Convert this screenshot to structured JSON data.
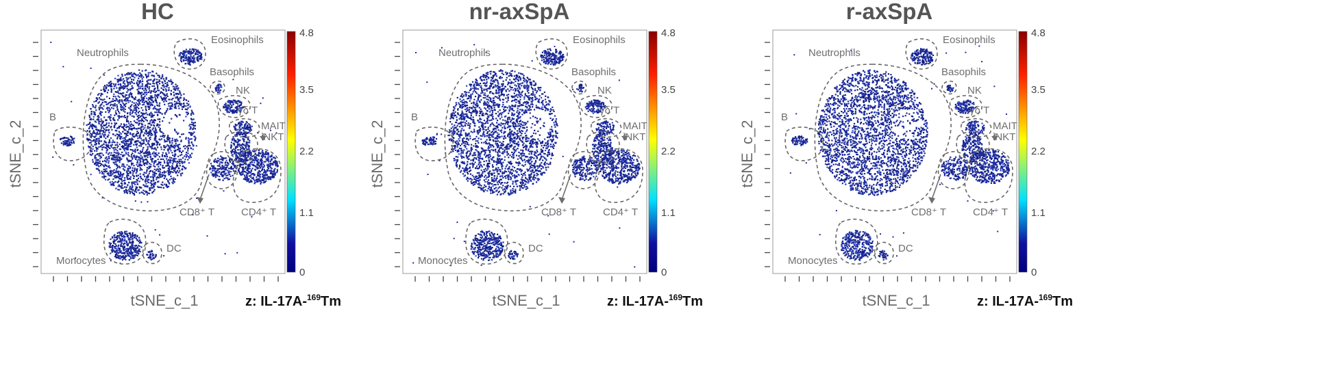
{
  "figure": {
    "colorbar_ticks": [
      "4.8",
      "3.5",
      "2.2",
      "1.1",
      "0"
    ],
    "colorbar_colors": [
      "#8b0000",
      "#ff2000",
      "#ffff00",
      "#00e0ff",
      "#1010a0",
      "#000080"
    ],
    "dot_color": "#1c2a9a"
  },
  "chart_data": [
    {
      "type": "scatter",
      "title": "HC",
      "xlabel": "tSNE_c_1",
      "ylabel": "tSNE_c_2",
      "colorbar_label": "z: IL-17A-",
      "colorbar_label_sup": "169",
      "colorbar_label_suffix": "Tm",
      "colorbar_range": [
        0,
        4.8
      ],
      "clusters": [
        "Neutrophils",
        "Eosinophils",
        "Basophils",
        "NK",
        "γδ T",
        "MAIT",
        "iNKT",
        "B",
        "CD8⁺ T",
        "CD4⁺ T",
        "Monocytes",
        "DC"
      ]
    },
    {
      "type": "scatter",
      "title": "nr-axSpA",
      "xlabel": "tSNE_c_1",
      "ylabel": "tSNE_c_2",
      "colorbar_label": "z: IL-17A-",
      "colorbar_label_sup": "169",
      "colorbar_label_suffix": "Tm",
      "colorbar_range": [
        0,
        4.8
      ],
      "clusters": [
        "Neutrophils",
        "Eosinophils",
        "Basophils",
        "NK",
        "γδ T",
        "MAIT",
        "iNKT",
        "B",
        "CD8⁺ T",
        "CD4⁺ T",
        "Monocytes",
        "DC"
      ]
    },
    {
      "type": "scatter",
      "title": "r-axSpA",
      "xlabel": "tSNE_c_1",
      "ylabel": "tSNE_c_2",
      "colorbar_label": "z: IL-17A-",
      "colorbar_label_sup": "169",
      "colorbar_label_suffix": "Tm",
      "colorbar_range": [
        0,
        4.8
      ],
      "clusters": [
        "Neutrophils",
        "Eosinophils",
        "Basophils",
        "NK",
        "γδ T",
        "MAIT",
        "iNKT",
        "B",
        "CD8⁺ T",
        "CD4⁺ T",
        "Monocytes",
        "DC"
      ]
    }
  ]
}
